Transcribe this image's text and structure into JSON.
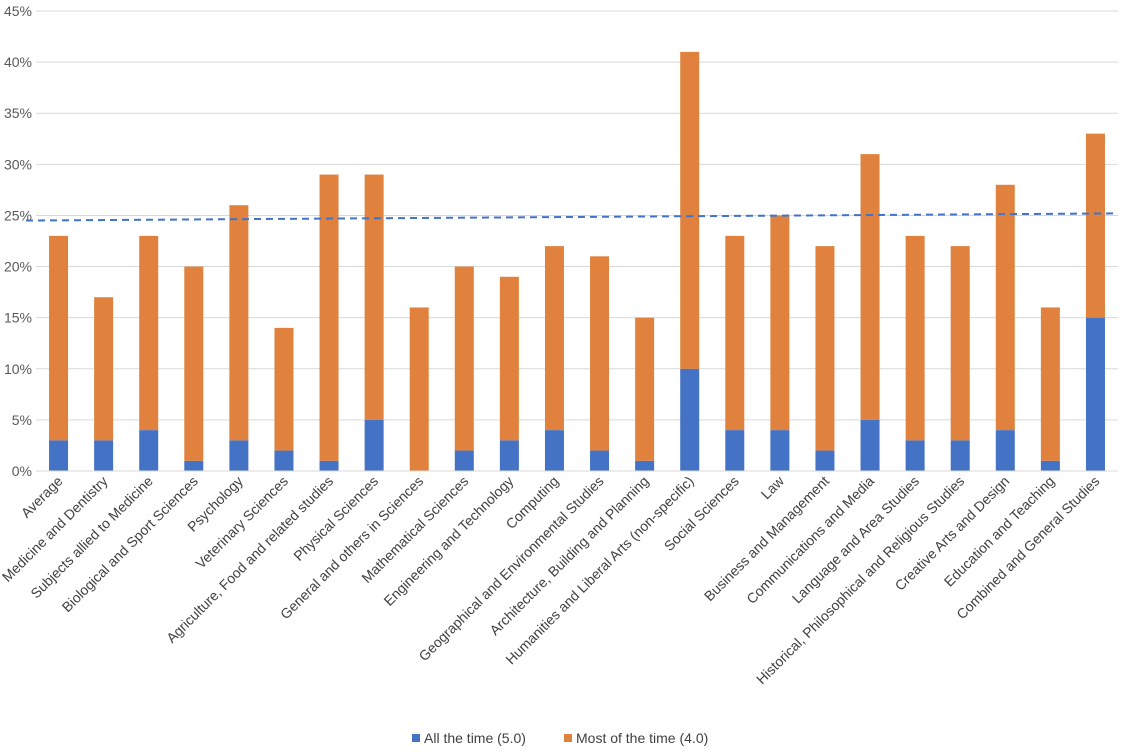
{
  "chart_data": {
    "type": "bar",
    "stacked": true,
    "title": "",
    "xlabel": "",
    "ylabel": "",
    "ylim": [
      0,
      45
    ],
    "y_tick_step": 5,
    "y_tick_format": "percent",
    "grid": true,
    "legend_position": "bottom",
    "categories": [
      "Average",
      "Medicine and Dentistry",
      "Subjects allied to Medicine",
      "Biological and Sport Sciences",
      "Psychology",
      "Veterinary Sciences",
      "Agriculture, Food and related studies",
      "Physical Sciences",
      "General and others in Sciences",
      "Mathematical Sciences",
      "Engineering and Technology",
      "Computing",
      "Geographical and Environmental Studies",
      "Architecture, Building and Planning",
      "Humanities and Liberal Arts (non-specific)",
      "Social Sciences",
      "Law",
      "Business and Management",
      "Communications and Media",
      "Language and Area Studies",
      "Historical, Philosophical and Religious Studies",
      "Creative Arts and Design",
      "Education and Teaching",
      "Combined and General Studies"
    ],
    "series": [
      {
        "name": "All the time (5.0)",
        "color": "#4472C4",
        "values": [
          3,
          3,
          4,
          1,
          3,
          2,
          1,
          5,
          0,
          2,
          3,
          4,
          2,
          1,
          10,
          4,
          4,
          2,
          5,
          3,
          3,
          4,
          1,
          15
        ]
      },
      {
        "name": "Most of the time (4.0)",
        "color": "#E0823D",
        "values": [
          20,
          14,
          19,
          19,
          23,
          12,
          28,
          24,
          16,
          18,
          16,
          18,
          19,
          14,
          31,
          19,
          21,
          20,
          26,
          20,
          19,
          24,
          15,
          18
        ]
      }
    ],
    "trendline": {
      "type": "linear",
      "style": "dashed",
      "color": "#4472C4",
      "y_start": 24.5,
      "y_end": 25.2
    }
  }
}
